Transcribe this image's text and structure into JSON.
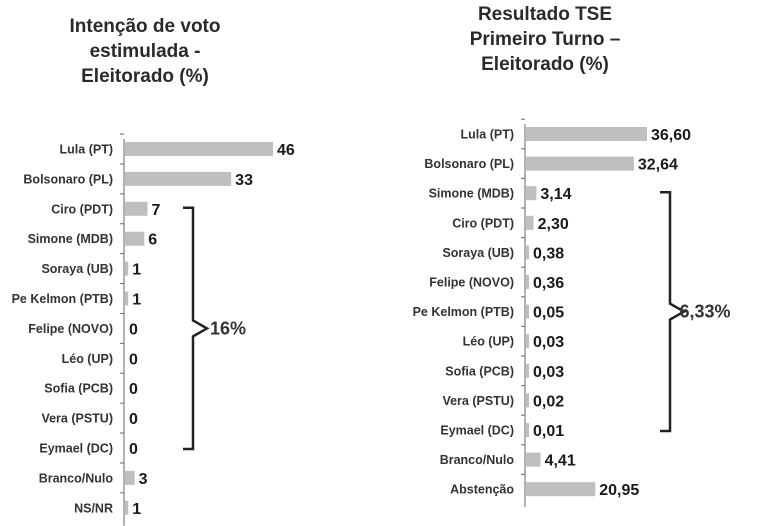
{
  "chart_data": [
    {
      "type": "bar",
      "orientation": "horizontal",
      "title": "Intenção de voto\nestimulada -\nEleitorado (%)",
      "categories": [
        "Lula (PT)",
        "Bolsonaro (PL)",
        "Ciro (PDT)",
        "Simone (MDB)",
        "Soraya (UB)",
        "Pe Kelmon (PTB)",
        "Felipe (NOVO)",
        "Léo (UP)",
        "Sofia (PCB)",
        "Vera (PSTU)",
        "Eymael (DC)",
        "Branco/Nulo",
        "NS/NR"
      ],
      "values": [
        46,
        33,
        7,
        6,
        1,
        1,
        0,
        0,
        0,
        0,
        0,
        3,
        1
      ],
      "value_labels": [
        "46",
        "33",
        "7",
        "6",
        "1",
        "1",
        "0",
        "0",
        "0",
        "0",
        "0",
        "3",
        "1"
      ],
      "bar_color": "#bfbfbf",
      "bracket": {
        "from_index": 2,
        "to_index": 10,
        "label": "16%"
      }
    },
    {
      "type": "bar",
      "orientation": "horizontal",
      "title": "Resultado TSE\nPrimeiro Turno –\nEleitorado (%)",
      "categories": [
        "Lula (PT)",
        "Bolsonaro (PL)",
        "Simone (MDB)",
        "Ciro (PDT)",
        "Soraya (UB)",
        "Felipe (NOVO)",
        "Pe Kelmon (PTB)",
        "Léo (UP)",
        "Sofia (PCB)",
        "Vera (PSTU)",
        "Eymael (DC)",
        "Branco/Nulo",
        "Abstenção"
      ],
      "values": [
        36.6,
        32.64,
        3.14,
        2.3,
        0.38,
        0.36,
        0.05,
        0.03,
        0.03,
        0.02,
        0.01,
        4.41,
        20.95
      ],
      "value_labels": [
        "36,60",
        "32,64",
        "3,14",
        "2,30",
        "0,38",
        "0,36",
        "0,05",
        "0,03",
        "0,03",
        "0,02",
        "0,01",
        "4,41",
        "20,95"
      ],
      "bar_color": "#bfbfbf",
      "bracket": {
        "from_index": 2,
        "to_index": 10,
        "label": "6,33%"
      }
    }
  ]
}
